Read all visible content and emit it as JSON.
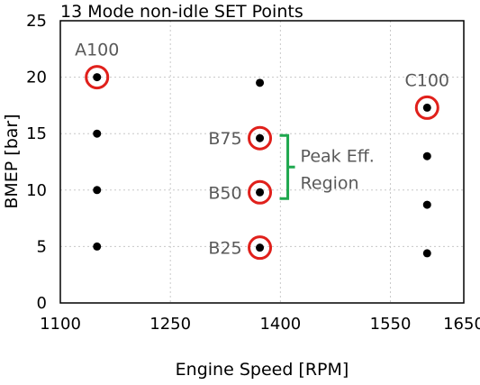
{
  "chart_data": {
    "type": "scatter",
    "title": "13 Mode non-idle SET Points",
    "xlabel": "Engine Speed [RPM]",
    "ylabel": "BMEP [bar]",
    "xlim": [
      1100,
      1650
    ],
    "ylim": [
      0,
      25
    ],
    "xticks": [
      "1100",
      "1250",
      "1400",
      "1550",
      "1650"
    ],
    "yticks": [
      "0",
      "5",
      "10",
      "15",
      "20",
      "25"
    ],
    "grid": true,
    "points": [
      {
        "x": 1150,
        "y": 20,
        "label": "A100",
        "highlighted": true
      },
      {
        "x": 1150,
        "y": 15,
        "label": "",
        "highlighted": false
      },
      {
        "x": 1150,
        "y": 10,
        "label": "",
        "highlighted": false
      },
      {
        "x": 1150,
        "y": 5,
        "label": "",
        "highlighted": false
      },
      {
        "x": 1372,
        "y": 19.5,
        "label": "",
        "highlighted": false
      },
      {
        "x": 1372,
        "y": 14.6,
        "label": "B75",
        "highlighted": true
      },
      {
        "x": 1372,
        "y": 9.8,
        "label": "B50",
        "highlighted": true
      },
      {
        "x": 1372,
        "y": 4.9,
        "label": "B25",
        "highlighted": true
      },
      {
        "x": 1600,
        "y": 17.3,
        "label": "C100",
        "highlighted": true
      },
      {
        "x": 1600,
        "y": 13.0,
        "label": "",
        "highlighted": false
      },
      {
        "x": 1600,
        "y": 8.7,
        "label": "",
        "highlighted": false
      },
      {
        "x": 1600,
        "y": 4.4,
        "label": "",
        "highlighted": false
      }
    ],
    "annotation": {
      "lines": [
        "Peak Eff.",
        "Region"
      ],
      "y_from": 9.8,
      "y_to": 14.6
    },
    "colors": {
      "point": "#000000",
      "highlight_circle": "#e0201b",
      "bracket": "#1fa84f",
      "label_text": "#595959",
      "grid": "#c8c8c8"
    }
  }
}
